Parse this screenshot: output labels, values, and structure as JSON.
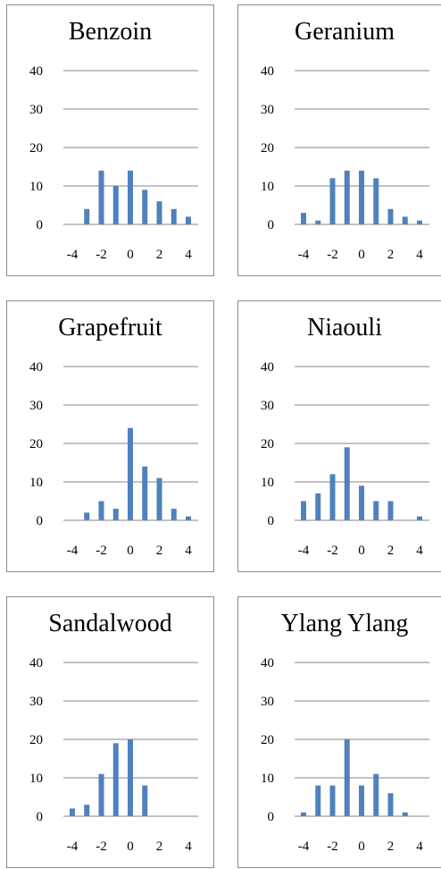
{
  "chart_data": [
    {
      "type": "bar",
      "title": "Benzoin",
      "x": [
        -4,
        -3,
        -2,
        -1,
        0,
        1,
        2,
        3,
        4
      ],
      "values": [
        0,
        4,
        14,
        10,
        14,
        9,
        6,
        4,
        2
      ],
      "yticks": [
        "0",
        "10",
        "20",
        "30",
        "40"
      ],
      "xticks": [
        "-4",
        "-2",
        "0",
        "2",
        "4"
      ],
      "ylim": [
        0,
        40
      ],
      "xlim": [
        -4,
        4
      ],
      "grid": "horizontal",
      "legend": "none"
    },
    {
      "type": "bar",
      "title": "Geranium",
      "x": [
        -4,
        -3,
        -2,
        -1,
        0,
        1,
        2,
        3,
        4
      ],
      "values": [
        3,
        1,
        12,
        14,
        14,
        12,
        4,
        2,
        1
      ],
      "yticks": [
        "0",
        "10",
        "20",
        "30",
        "40"
      ],
      "xticks": [
        "-4",
        "-2",
        "0",
        "2",
        "4"
      ],
      "ylim": [
        0,
        40
      ],
      "xlim": [
        -4,
        4
      ],
      "grid": "horizontal",
      "legend": "none"
    },
    {
      "type": "bar",
      "title": "Grapefruit",
      "x": [
        -4,
        -3,
        -2,
        -1,
        0,
        1,
        2,
        3,
        4
      ],
      "values": [
        0,
        2,
        5,
        3,
        24,
        14,
        11,
        3,
        1
      ],
      "yticks": [
        "0",
        "10",
        "20",
        "30",
        "40"
      ],
      "xticks": [
        "-4",
        "-2",
        "0",
        "2",
        "4"
      ],
      "ylim": [
        0,
        40
      ],
      "xlim": [
        -4,
        4
      ],
      "grid": "horizontal",
      "legend": "none"
    },
    {
      "type": "bar",
      "title": "Niaouli",
      "x": [
        -4,
        -3,
        -2,
        -1,
        0,
        1,
        2,
        3,
        4
      ],
      "values": [
        5,
        7,
        12,
        19,
        9,
        5,
        5,
        0,
        1
      ],
      "yticks": [
        "0",
        "10",
        "20",
        "30",
        "40"
      ],
      "xticks": [
        "-4",
        "-2",
        "0",
        "2",
        "4"
      ],
      "ylim": [
        0,
        40
      ],
      "xlim": [
        -4,
        4
      ],
      "grid": "horizontal",
      "legend": "none"
    },
    {
      "type": "bar",
      "title": "Sandalwood",
      "x": [
        -4,
        -3,
        -2,
        -1,
        0,
        1,
        2,
        3,
        4
      ],
      "values": [
        2,
        3,
        11,
        19,
        20,
        8,
        0,
        0,
        0
      ],
      "yticks": [
        "0",
        "10",
        "20",
        "30",
        "40"
      ],
      "xticks": [
        "-4",
        "-2",
        "0",
        "2",
        "4"
      ],
      "ylim": [
        0,
        40
      ],
      "xlim": [
        -4,
        4
      ],
      "grid": "horizontal",
      "legend": "none"
    },
    {
      "type": "bar",
      "title": "Ylang Ylang",
      "x": [
        -4,
        -3,
        -2,
        -1,
        0,
        1,
        2,
        3,
        4
      ],
      "values": [
        1,
        8,
        8,
        20,
        8,
        11,
        6,
        1,
        0
      ],
      "yticks": [
        "0",
        "10",
        "20",
        "30",
        "40"
      ],
      "xticks": [
        "-4",
        "-2",
        "0",
        "2",
        "4"
      ],
      "ylim": [
        0,
        40
      ],
      "xlim": [
        -4,
        4
      ],
      "grid": "horizontal",
      "legend": "none"
    }
  ]
}
